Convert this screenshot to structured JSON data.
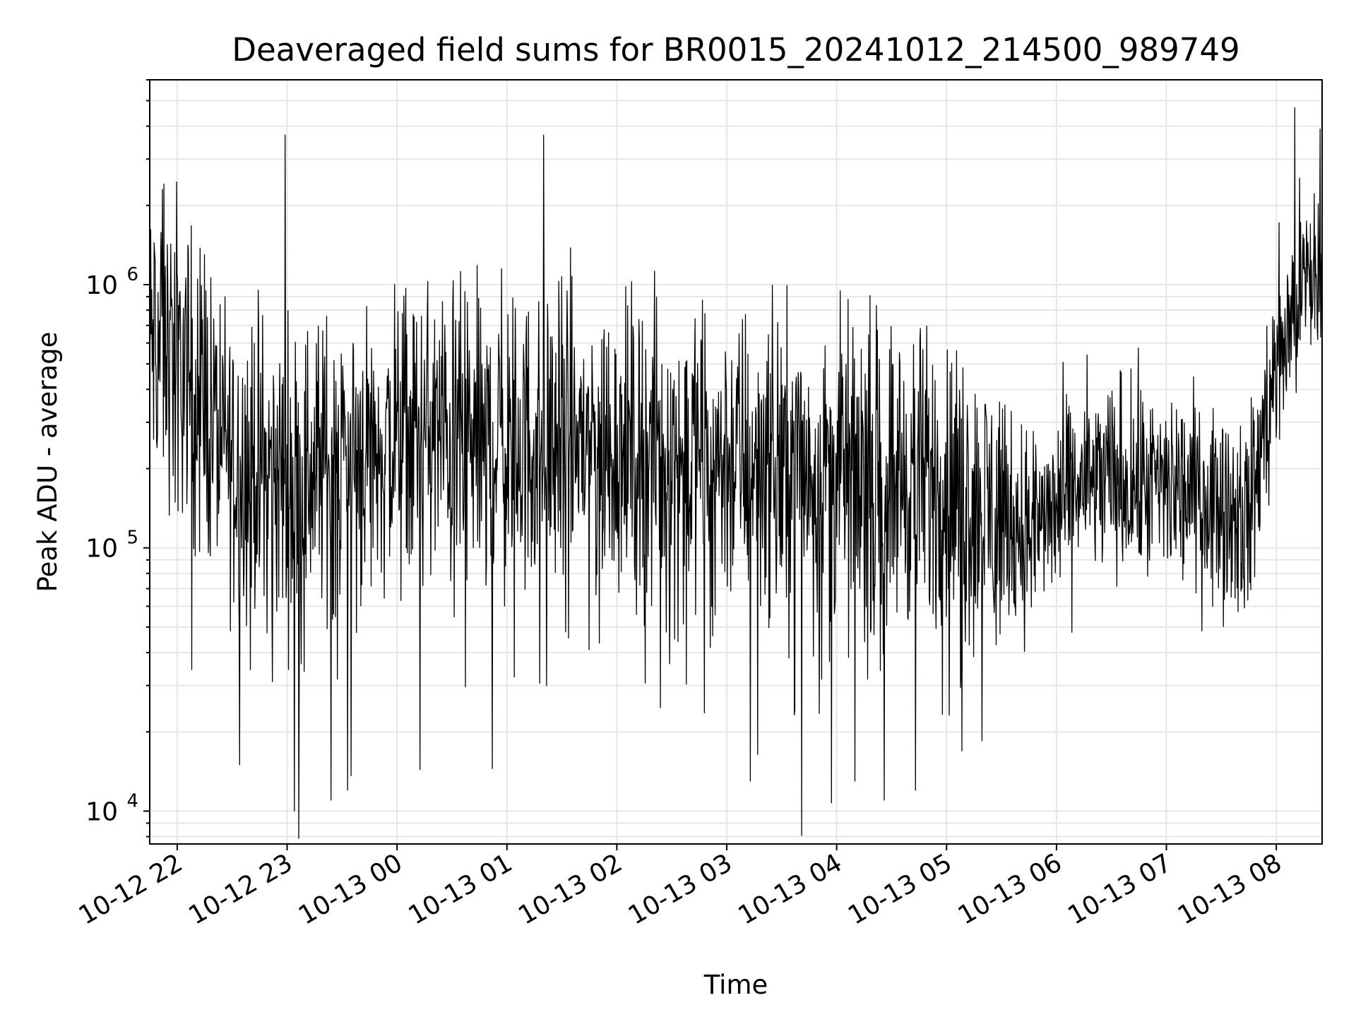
{
  "chart_data": {
    "type": "line",
    "title": "Deaveraged field sums for BR0015_20241012_214500_989749",
    "xlabel": "Time",
    "ylabel": "Peak ADU - average",
    "y_scale": "log",
    "ylim": [
      7500,
      6000000
    ],
    "xlim": [
      "2024-10-12 21:45",
      "2024-10-13 08:25"
    ],
    "grid": true,
    "line_color": "#000000",
    "grid_color": "#e6e6e6",
    "x_ticks": [
      {
        "t": "2024-10-12 22:00",
        "label": "10-12 22"
      },
      {
        "t": "2024-10-12 23:00",
        "label": "10-12 23"
      },
      {
        "t": "2024-10-13 00:00",
        "label": "10-13 00"
      },
      {
        "t": "2024-10-13 01:00",
        "label": "10-13 01"
      },
      {
        "t": "2024-10-13 02:00",
        "label": "10-13 02"
      },
      {
        "t": "2024-10-13 03:00",
        "label": "10-13 03"
      },
      {
        "t": "2024-10-13 04:00",
        "label": "10-13 04"
      },
      {
        "t": "2024-10-13 05:00",
        "label": "10-13 05"
      },
      {
        "t": "2024-10-13 06:00",
        "label": "10-13 06"
      },
      {
        "t": "2024-10-13 07:00",
        "label": "10-13 07"
      },
      {
        "t": "2024-10-13 08:00",
        "label": "10-13 08"
      }
    ],
    "y_ticks": [
      {
        "value": 10000,
        "base": "10",
        "exp": "4"
      },
      {
        "value": 100000,
        "base": "10",
        "exp": "5"
      },
      {
        "value": 1000000,
        "base": "10",
        "exp": "6"
      }
    ],
    "series": [
      {
        "x": [
          "2024-10-12 21:45",
          "2024-10-12 22:00",
          "2024-10-12 22:15",
          "2024-10-12 22:30",
          "2024-10-12 22:45",
          "2024-10-12 23:00",
          "2024-10-12 23:15",
          "2024-10-12 23:30",
          "2024-10-12 23:45",
          "2024-10-13 00:00",
          "2024-10-13 00:15",
          "2024-10-13 00:30",
          "2024-10-13 00:45",
          "2024-10-13 01:00",
          "2024-10-13 01:15",
          "2024-10-13 01:30",
          "2024-10-13 01:45",
          "2024-10-13 02:00",
          "2024-10-13 02:15",
          "2024-10-13 02:30",
          "2024-10-13 02:45",
          "2024-10-13 03:00",
          "2024-10-13 03:15",
          "2024-10-13 03:30",
          "2024-10-13 03:45",
          "2024-10-13 04:00",
          "2024-10-13 04:15",
          "2024-10-13 04:30",
          "2024-10-13 04:45",
          "2024-10-13 05:00",
          "2024-10-13 05:15",
          "2024-10-13 05:30",
          "2024-10-13 05:45",
          "2024-10-13 06:00",
          "2024-10-13 06:15",
          "2024-10-13 06:30",
          "2024-10-13 06:45",
          "2024-10-13 07:00",
          "2024-10-13 07:15",
          "2024-10-13 07:30",
          "2024-10-13 07:45",
          "2024-10-13 08:00",
          "2024-10-13 08:15",
          "2024-10-13 08:25"
        ],
        "y": [
          600000,
          550000,
          350000,
          220000,
          200000,
          180000,
          200000,
          230000,
          240000,
          250000,
          270000,
          260000,
          250000,
          240000,
          245000,
          260000,
          255000,
          240000,
          230000,
          225000,
          220000,
          215000,
          220000,
          215000,
          210000,
          200000,
          200000,
          190000,
          180000,
          170000,
          150000,
          130000,
          115000,
          140000,
          175000,
          180000,
          175000,
          170000,
          160000,
          150000,
          130000,
          500000,
          1000000,
          1100000
        ],
        "spikes": [
          {
            "t": "2024-10-12 21:52",
            "value": 2300000
          },
          {
            "t": "2024-10-12 22:15",
            "value": 1300000
          },
          {
            "t": "2024-10-12 22:34",
            "value": 15000
          },
          {
            "t": "2024-10-12 22:59",
            "value": 3700000
          },
          {
            "t": "2024-10-12 23:04",
            "value": 10000
          },
          {
            "t": "2024-10-12 23:24",
            "value": 11000
          },
          {
            "t": "2024-10-12 23:33",
            "value": 12000
          },
          {
            "t": "2024-10-13 00:52",
            "value": 14500
          },
          {
            "t": "2024-10-13 00:57",
            "value": 1150000
          },
          {
            "t": "2024-10-13 01:20",
            "value": 3700000
          },
          {
            "t": "2024-10-13 03:13",
            "value": 13000
          },
          {
            "t": "2024-10-13 04:10",
            "value": 13000
          },
          {
            "t": "2024-10-13 04:26",
            "value": 11000
          },
          {
            "t": "2024-10-13 04:43",
            "value": 12000
          },
          {
            "t": "2024-10-13 08:10",
            "value": 4700000
          },
          {
            "t": "2024-10-13 08:24",
            "value": 3900000
          }
        ]
      }
    ]
  }
}
